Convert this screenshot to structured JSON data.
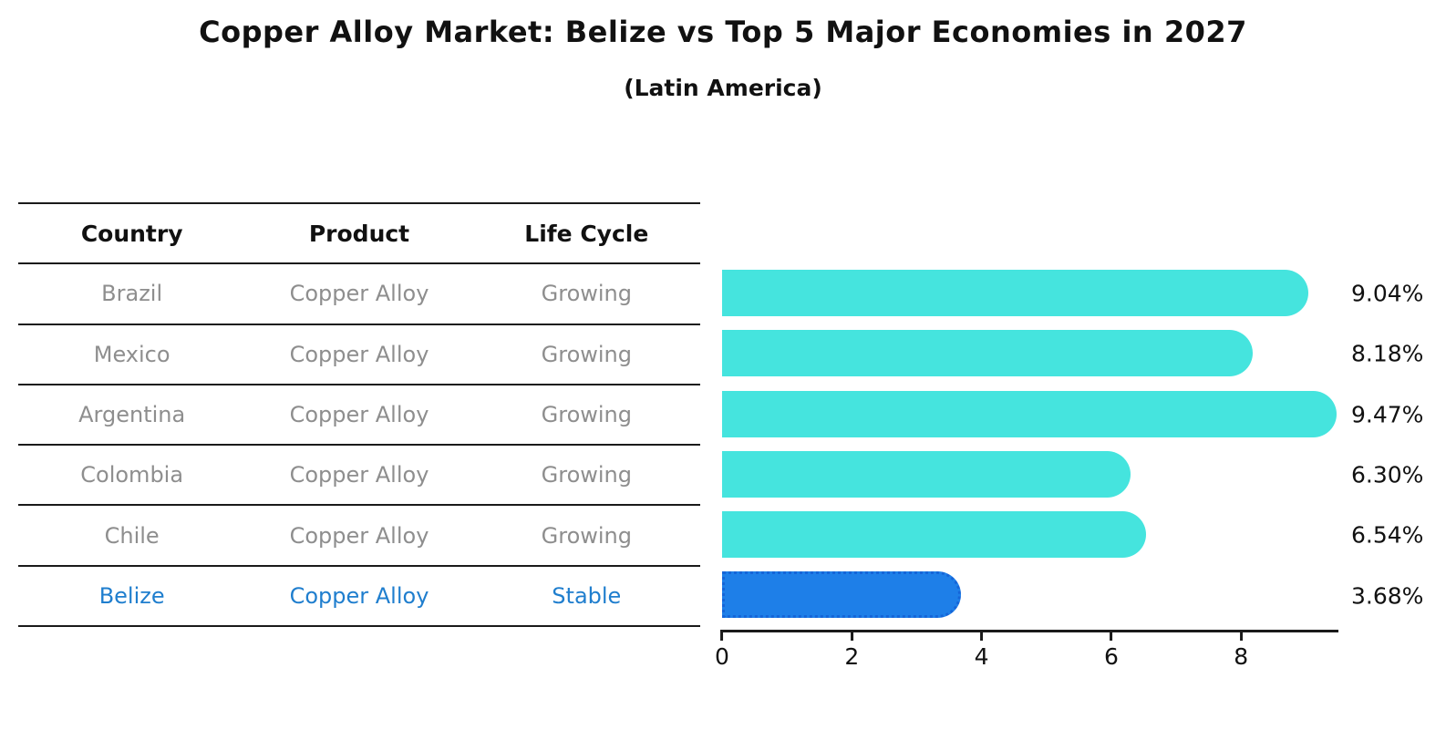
{
  "title": "Copper Alloy Market: Belize vs Top 5 Major Economies in 2027",
  "subtitle": "(Latin America)",
  "table": {
    "headers": [
      "Country",
      "Product",
      "Life Cycle"
    ],
    "rows": [
      {
        "country": "Brazil",
        "product": "Copper Alloy",
        "life_cycle": "Growing"
      },
      {
        "country": "Mexico",
        "product": "Copper Alloy",
        "life_cycle": "Growing"
      },
      {
        "country": "Argentina",
        "product": "Copper Alloy",
        "life_cycle": "Growing"
      },
      {
        "country": "Colombia",
        "product": "Copper Alloy",
        "life_cycle": "Growing"
      },
      {
        "country": "Chile",
        "product": "Copper Alloy",
        "life_cycle": "Growing"
      },
      {
        "country": "Belize",
        "product": "Copper Alloy",
        "life_cycle": "Stable"
      }
    ]
  },
  "chart_data": {
    "type": "bar",
    "orientation": "horizontal",
    "title": "Copper Alloy Market: Belize vs Top 5 Major Economies in 2027",
    "subtitle": "(Latin America)",
    "categories": [
      "Brazil",
      "Mexico",
      "Argentina",
      "Colombia",
      "Chile",
      "Belize"
    ],
    "values": [
      9.04,
      8.18,
      9.47,
      6.3,
      6.54,
      3.68
    ],
    "labels": [
      "9.04%",
      "8.18%",
      "9.47%",
      "6.30%",
      "6.54%",
      "3.68%"
    ],
    "xticks": [
      0,
      2,
      4,
      6,
      8
    ],
    "xlim": [
      0,
      9.5
    ],
    "grid": false,
    "legend": "none",
    "highlight_index": 5,
    "bar_color": "#45E4DE",
    "highlight_color": "#1E7FE8",
    "highlight_border": "#1565D8",
    "highlight_text_color": "#1F7ECE"
  }
}
